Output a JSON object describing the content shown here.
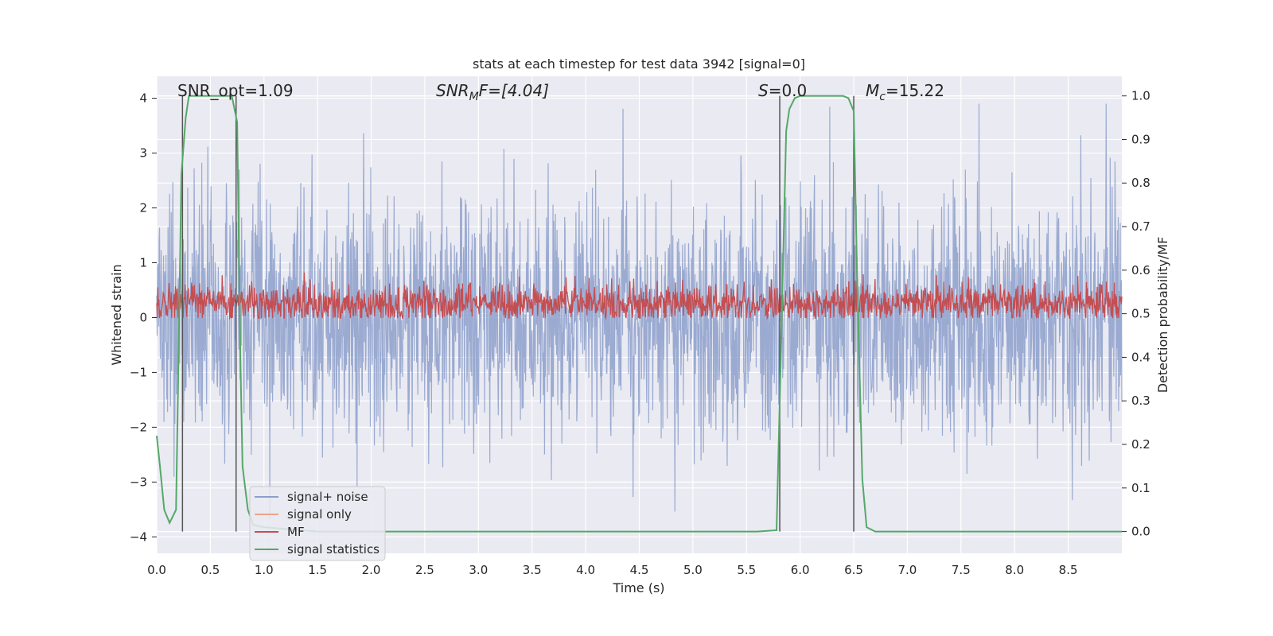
{
  "chart_data": {
    "type": "line",
    "title": "stats at each timestep for test data 3942 [signal=0]",
    "xlabel": "Time (s)",
    "ylabel_left": "Whitened strain",
    "ylabel_right": "Detection probability/MF",
    "xlim": [
      0.0,
      9.0
    ],
    "ylim_left": [
      -4.3,
      4.4
    ],
    "ylim_right": [
      -0.05,
      1.045
    ],
    "xticks": [
      "0.0",
      "0.5",
      "1.0",
      "1.5",
      "2.0",
      "2.5",
      "3.0",
      "3.5",
      "4.0",
      "4.5",
      "5.0",
      "5.5",
      "6.0",
      "6.5",
      "7.0",
      "7.5",
      "8.0",
      "8.5"
    ],
    "yticks_left": [
      "4",
      "3",
      "2",
      "1",
      "0",
      "−1",
      "−2",
      "−3",
      "−4"
    ],
    "yticks_right": [
      "1.0",
      "0.9",
      "0.8",
      "0.7",
      "0.6",
      "0.5",
      "0.4",
      "0.3",
      "0.2",
      "0.1",
      "0.0"
    ],
    "grid": true,
    "legend_position": "lower-left",
    "legend": [
      {
        "label": "signal+ noise",
        "color": "#8c9fcb"
      },
      {
        "label": "signal only",
        "color": "#eaa68a"
      },
      {
        "label": "MF",
        "color": "#c44e52"
      },
      {
        "label": "signal statistics",
        "color": "#55a868"
      }
    ],
    "annotations": {
      "snr_opt": "SNR_opt=1.09",
      "snr_mf_sym": "SNR",
      "snr_mf_sub": "M",
      "snr_mf_rest": "F=[4.04]",
      "s_sym": "S",
      "s_rest": "=0.0",
      "mc_sym": "M",
      "mc_sub": "c",
      "mc_rest": "=15.22"
    },
    "series": [
      {
        "name": "signal+ noise",
        "axis": "left",
        "color": "#8c9fcb",
        "description_only": false,
        "range": [
          -3.8,
          3.9
        ]
      },
      {
        "name": "signal only",
        "axis": "left",
        "color": "#eaa68a",
        "values": []
      },
      {
        "name": "MF",
        "axis": "right",
        "color": "#c44e52",
        "range": [
          0.49,
          0.6
        ]
      },
      {
        "name": "signal statistics",
        "axis": "right",
        "color": "#55a868",
        "x": [
          0.0,
          0.03,
          0.07,
          0.12,
          0.18,
          0.2,
          0.23,
          0.27,
          0.3,
          0.4,
          0.5,
          0.6,
          0.7,
          0.75,
          0.78,
          0.8,
          0.85,
          0.9,
          1.0,
          1.5,
          2.0,
          3.0,
          4.0,
          5.0,
          5.6,
          5.78,
          5.82,
          5.87,
          5.9,
          5.95,
          6.0,
          6.1,
          6.4,
          6.45,
          6.5,
          6.53,
          6.58,
          6.62,
          6.7,
          7.0,
          8.0,
          9.0
        ],
        "y": [
          0.22,
          0.15,
          0.05,
          0.02,
          0.05,
          0.35,
          0.82,
          0.95,
          1.0,
          1.0,
          1.0,
          1.0,
          1.0,
          0.94,
          0.4,
          0.15,
          0.05,
          0.015,
          0.01,
          0.0,
          0.0,
          0.0,
          0.0,
          0.0,
          0.0,
          0.003,
          0.4,
          0.92,
          0.97,
          0.995,
          1.0,
          1.0,
          1.0,
          0.995,
          0.965,
          0.6,
          0.12,
          0.01,
          0.0,
          0.0,
          0.0,
          0.0
        ]
      }
    ],
    "vertical_lines_x": [
      0.24,
      0.74,
      5.81,
      6.5
    ]
  }
}
